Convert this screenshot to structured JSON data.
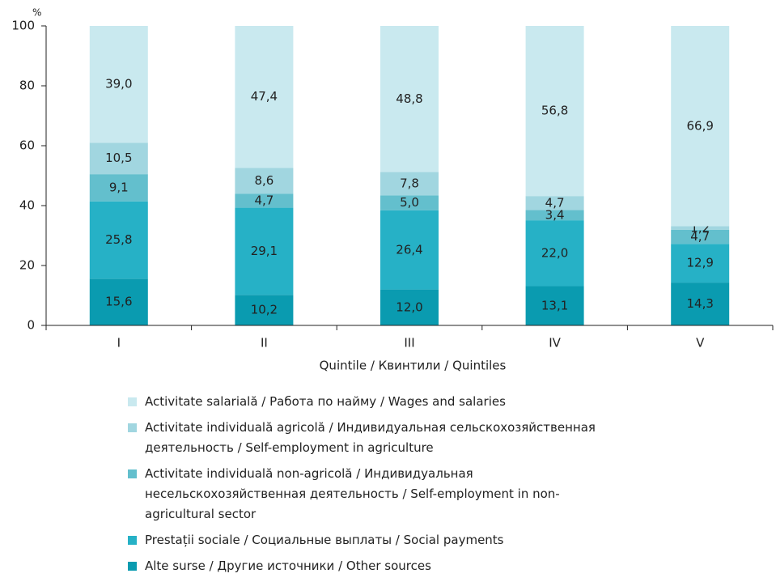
{
  "chart_data": {
    "type": "stacked_bar",
    "y_label": "%",
    "x_label": "Quintile / Квинтили / Quintiles",
    "categories": [
      "I",
      "II",
      "III",
      "IV",
      "V"
    ],
    "ylim": [
      0,
      100
    ],
    "yticks": [
      0,
      20,
      40,
      60,
      80,
      100
    ],
    "series": [
      {
        "name": "Alte surse / Другие источники / Other sources",
        "color": "#0a9bb0",
        "values": [
          15.6,
          10.2,
          12.0,
          13.1,
          14.3
        ],
        "value_labels": [
          "15,6",
          "10,2",
          "12,0",
          "13,1",
          "14,3"
        ]
      },
      {
        "name": "Prestații sociale / Социальные выплаты / Social payments",
        "color": "#26b1c6",
        "values": [
          25.8,
          29.1,
          26.4,
          22.0,
          12.9
        ],
        "value_labels": [
          "25,8",
          "29,1",
          "26,4",
          "22,0",
          "12,9"
        ]
      },
      {
        "name": "Activitate individuală non-agricolă / Индивидуальная несельскохозяйственная деятельность / Self-employment in non-agricultural sector",
        "color": "#63bfcd",
        "values": [
          9.1,
          4.7,
          5.0,
          3.4,
          4.7
        ],
        "value_labels": [
          "9,1",
          "4,7",
          "5,0",
          "3,4",
          "4,7"
        ]
      },
      {
        "name": "Activitate individuală agricolă / Индивидуальная сельскохозяйственная деятельность / Self-employment in agriculture",
        "color": "#a1d6e0",
        "values": [
          10.5,
          8.6,
          7.8,
          4.7,
          1.2
        ],
        "value_labels": [
          "10,5",
          "8,6",
          "7,8",
          "4,7",
          "1,2"
        ]
      },
      {
        "name": "Activitate salarială / Работа по найму / Wages and salaries",
        "color": "#c9e9ef",
        "values": [
          39.0,
          47.4,
          48.8,
          56.8,
          66.9
        ],
        "value_labels": [
          "39,0",
          "47,4",
          "48,8",
          "56,8",
          "66,9"
        ]
      }
    ]
  }
}
